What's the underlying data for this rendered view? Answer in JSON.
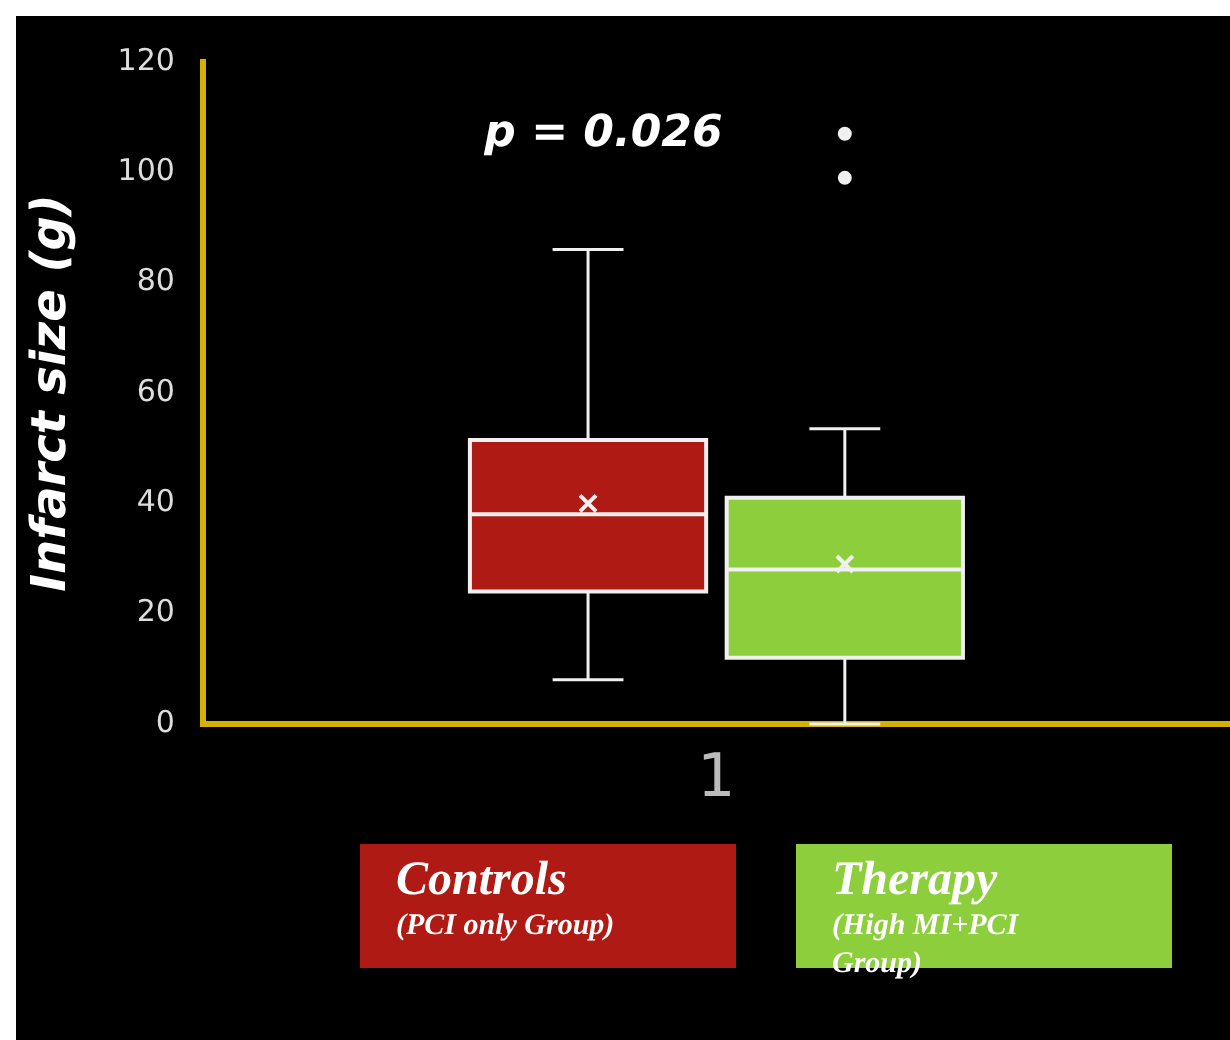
{
  "chart_data": {
    "type": "box",
    "categories": [
      "1"
    ],
    "ylabel": "Infarct size (g)",
    "ylim": [
      0,
      120
    ],
    "yticks": [
      0,
      20,
      40,
      60,
      80,
      100,
      120
    ],
    "legend": "bottom",
    "annotations": [
      "p = 0.026"
    ],
    "series": [
      {
        "name": "Controls (PCI only Group)",
        "color": "#b01a14",
        "boxes": [
          {
            "low": 8,
            "q1": 24,
            "median": 38,
            "q3": 51.5,
            "high": 86,
            "mean": 40
          }
        ]
      },
      {
        "name": "Therapy (High MI+PCI Group)",
        "color": "#8cce3c",
        "boxes": [
          {
            "low": 0,
            "q1": 12,
            "median": 28,
            "q3": 41,
            "high": 53.5,
            "mean": 29,
            "outliers": [
              99,
              107
            ]
          }
        ]
      }
    ]
  }
}
